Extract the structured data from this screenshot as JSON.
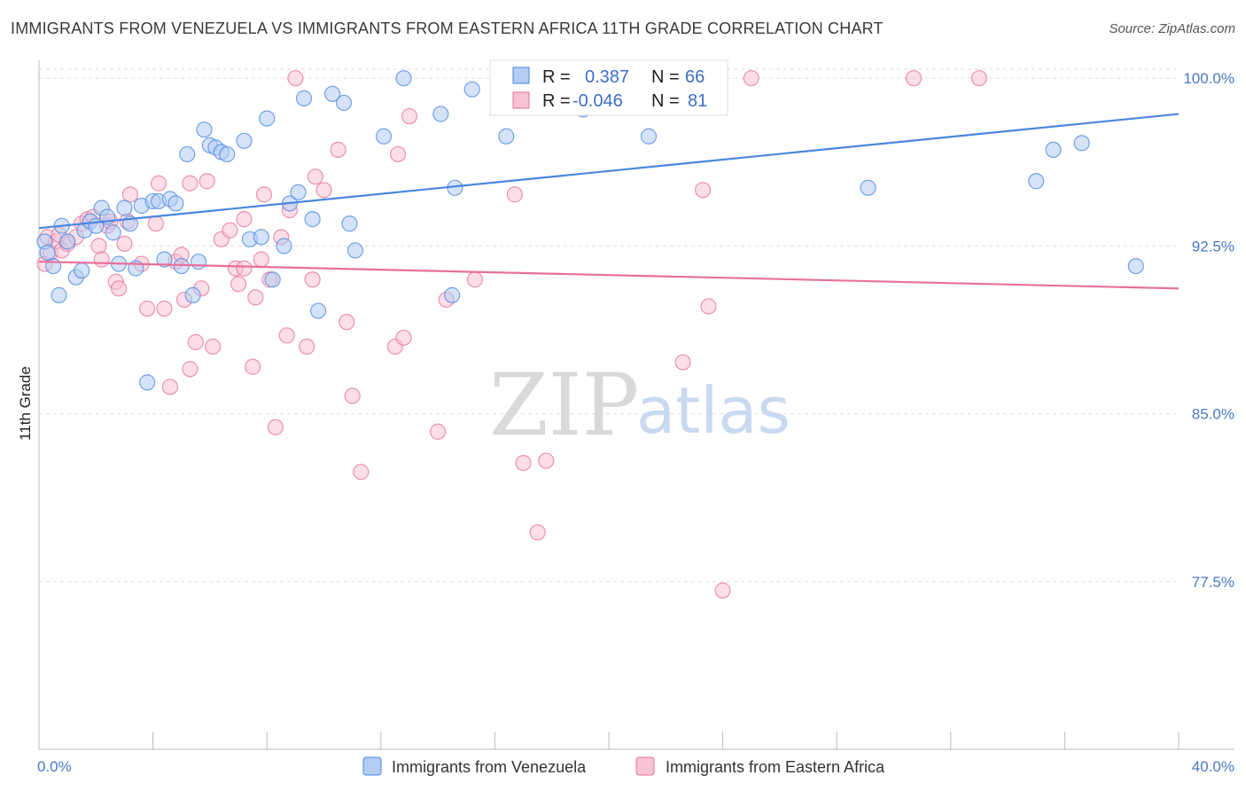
{
  "title": "IMMIGRANTS FROM VENEZUELA VS IMMIGRANTS FROM EASTERN AFRICA 11TH GRADE CORRELATION CHART",
  "source": "Source: ZipAtlas.com",
  "watermark": {
    "zip": "ZIP",
    "atlas": "atlas"
  },
  "colors": {
    "blue": "#4a86e0",
    "blue_fill": "#b3ccf2",
    "pink": "#e8709a",
    "pink_fill": "#f7c3d4",
    "axis_text": "#4a78c8",
    "grid": "#dddddd"
  },
  "legend": {
    "r_label": "R =",
    "n_label": "N =",
    "series1": {
      "r": "0.387",
      "n": "66"
    },
    "series2": {
      "r": "-0.046",
      "n": "81"
    }
  },
  "chart_data": {
    "type": "scatter",
    "title": "IMMIGRANTS FROM VENEZUELA VS IMMIGRANTS FROM EASTERN AFRICA 11TH GRADE CORRELATION CHART",
    "xlabel": "",
    "ylabel": "11th Grade",
    "xlim": [
      0,
      40
    ],
    "ylim": [
      70,
      100.8
    ],
    "x_ticks": [
      0,
      40
    ],
    "x_tick_labels": [
      "0.0%",
      "40.0%"
    ],
    "y_ticks": [
      77.5,
      85.0,
      92.5,
      100.0
    ],
    "y_tick_labels": [
      "77.5%",
      "85.0%",
      "92.5%",
      "100.0%"
    ],
    "grid": true,
    "legend_position": "top-center",
    "series": [
      {
        "name": "Immigrants from Venezuela",
        "color": "#4a86e0",
        "trend": {
          "x": [
            0,
            40
          ],
          "y": [
            93.3,
            98.4
          ]
        },
        "points": [
          [
            0.2,
            92.7
          ],
          [
            0.3,
            92.2
          ],
          [
            0.5,
            91.6
          ],
          [
            0.7,
            90.3
          ],
          [
            0.8,
            93.4
          ],
          [
            1.0,
            92.7
          ],
          [
            1.3,
            91.1
          ],
          [
            1.5,
            91.4
          ],
          [
            1.6,
            93.2
          ],
          [
            1.8,
            93.6
          ],
          [
            2.0,
            93.4
          ],
          [
            2.2,
            94.2
          ],
          [
            2.4,
            93.8
          ],
          [
            2.6,
            93.1
          ],
          [
            2.8,
            91.7
          ],
          [
            3.0,
            94.2
          ],
          [
            3.2,
            93.5
          ],
          [
            3.4,
            91.5
          ],
          [
            3.6,
            94.3
          ],
          [
            3.8,
            86.4
          ],
          [
            4.0,
            94.5
          ],
          [
            4.2,
            94.5
          ],
          [
            4.4,
            91.9
          ],
          [
            4.6,
            94.6
          ],
          [
            4.8,
            94.4
          ],
          [
            5.0,
            91.6
          ],
          [
            5.2,
            96.6
          ],
          [
            5.4,
            90.3
          ],
          [
            5.6,
            91.8
          ],
          [
            5.8,
            97.7
          ],
          [
            6.0,
            97.0
          ],
          [
            6.2,
            96.9
          ],
          [
            6.4,
            96.7
          ],
          [
            6.6,
            96.6
          ],
          [
            7.2,
            97.2
          ],
          [
            7.4,
            92.8
          ],
          [
            7.8,
            92.9
          ],
          [
            8.0,
            98.2
          ],
          [
            8.2,
            91.0
          ],
          [
            8.6,
            92.5
          ],
          [
            8.8,
            94.4
          ],
          [
            9.1,
            94.9
          ],
          [
            9.3,
            99.1
          ],
          [
            9.6,
            93.7
          ],
          [
            9.8,
            89.6
          ],
          [
            10.3,
            99.3
          ],
          [
            10.7,
            98.9
          ],
          [
            10.9,
            93.5
          ],
          [
            11.1,
            92.3
          ],
          [
            12.1,
            97.4
          ],
          [
            12.8,
            100.0
          ],
          [
            14.1,
            98.4
          ],
          [
            14.5,
            90.3
          ],
          [
            14.6,
            95.1
          ],
          [
            15.2,
            99.5
          ],
          [
            16.4,
            97.4
          ],
          [
            17.3,
            100.2
          ],
          [
            19.1,
            98.6
          ],
          [
            21.4,
            97.4
          ],
          [
            29.1,
            95.1
          ],
          [
            35.0,
            95.4
          ],
          [
            35.6,
            96.8
          ],
          [
            36.6,
            97.1
          ],
          [
            38.5,
            91.6
          ]
        ]
      },
      {
        "name": "Immigrants from Eastern Africa",
        "color": "#e8709a",
        "trend": {
          "x": [
            0,
            40
          ],
          "y": [
            91.8,
            90.6
          ]
        },
        "points": [
          [
            0.2,
            91.7
          ],
          [
            0.3,
            92.9
          ],
          [
            0.4,
            92.2
          ],
          [
            0.6,
            92.7
          ],
          [
            0.7,
            93.0
          ],
          [
            0.8,
            92.3
          ],
          [
            1.0,
            92.6
          ],
          [
            1.3,
            92.9
          ],
          [
            1.5,
            93.5
          ],
          [
            1.7,
            93.7
          ],
          [
            1.9,
            93.8
          ],
          [
            2.1,
            92.5
          ],
          [
            2.2,
            91.9
          ],
          [
            2.4,
            93.4
          ],
          [
            2.5,
            93.6
          ],
          [
            2.7,
            90.9
          ],
          [
            2.8,
            90.6
          ],
          [
            3.0,
            92.6
          ],
          [
            3.1,
            93.6
          ],
          [
            3.2,
            94.8
          ],
          [
            3.6,
            91.7
          ],
          [
            3.8,
            89.7
          ],
          [
            4.1,
            93.5
          ],
          [
            4.2,
            95.3
          ],
          [
            4.4,
            89.7
          ],
          [
            4.6,
            86.2
          ],
          [
            4.8,
            91.8
          ],
          [
            5.0,
            92.1
          ],
          [
            5.1,
            90.1
          ],
          [
            5.3,
            95.3
          ],
          [
            5.3,
            87.0
          ],
          [
            5.5,
            88.2
          ],
          [
            5.7,
            90.6
          ],
          [
            5.9,
            95.4
          ],
          [
            6.1,
            88.0
          ],
          [
            6.4,
            92.8
          ],
          [
            6.7,
            93.2
          ],
          [
            6.9,
            91.5
          ],
          [
            7.0,
            90.8
          ],
          [
            7.2,
            91.5
          ],
          [
            7.2,
            93.7
          ],
          [
            7.5,
            87.1
          ],
          [
            7.6,
            90.2
          ],
          [
            7.8,
            91.9
          ],
          [
            7.9,
            94.8
          ],
          [
            8.1,
            91.0
          ],
          [
            8.3,
            84.4
          ],
          [
            8.5,
            92.9
          ],
          [
            8.7,
            88.5
          ],
          [
            8.8,
            94.1
          ],
          [
            9.0,
            100.0
          ],
          [
            9.4,
            88.0
          ],
          [
            9.6,
            91.0
          ],
          [
            9.7,
            95.6
          ],
          [
            10.0,
            95.0
          ],
          [
            10.5,
            96.8
          ],
          [
            10.8,
            89.1
          ],
          [
            11.0,
            85.8
          ],
          [
            11.3,
            82.4
          ],
          [
            12.5,
            88.0
          ],
          [
            12.6,
            96.6
          ],
          [
            12.8,
            88.4
          ],
          [
            13.0,
            98.3
          ],
          [
            14.0,
            84.2
          ],
          [
            14.3,
            90.1
          ],
          [
            15.3,
            91.0
          ],
          [
            16.7,
            94.8
          ],
          [
            17.0,
            82.8
          ],
          [
            17.5,
            79.7
          ],
          [
            17.8,
            82.9
          ],
          [
            22.6,
            87.3
          ],
          [
            23.3,
            95.0
          ],
          [
            23.5,
            89.8
          ],
          [
            24.0,
            77.1
          ],
          [
            25.0,
            100.0
          ],
          [
            30.7,
            100.0
          ],
          [
            33.0,
            100.0
          ]
        ]
      }
    ]
  }
}
